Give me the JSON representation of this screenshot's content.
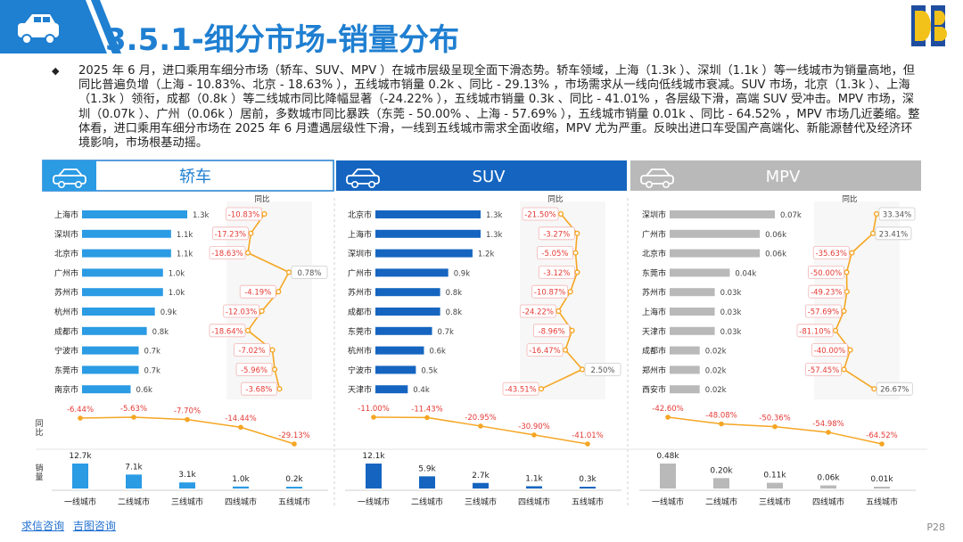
{
  "page": {
    "title": "3.5.1-细分市场-销量分布",
    "summary": "2025 年 6 月，进口乘用车细分市场（轿车、SUV、MPV ）在城市层级呈现全面下滑态势。轿车领域，上海（1.3k ）、深圳（1.1k ）等一线城市为销量高地，但同比普遍负增（上海 - 10.83%、北京 - 18.63% ），五线城市销量 0.2k 、同比 - 29.13% ，市场需求从一线向低线城市衰减。SUV 市场，北京（1.3k ）、上海（1.3k ）领衔，成都（0.8k ）等二线城市同比降幅显著（-24.22% ），五线城市销量 0.3k 、同比 - 41.01% ，各层级下滑，高端 SUV 受冲击。MPV 市场，深圳（0.07k ）、广州（0.06k ）居前，多数城市同比暴跌（东莞 - 50.00% 、上海 - 57.69% ），五线城市销量 0.01k 、同比 - 64.52% ，MPV 市场几近萎缩。整体看，进口乘用车细分市场在 2025 年 6 月遭遇层级性下滑，一线到五线城市需求全面收缩，MPV 尤为严重。反映出进口车受国产高端化、新能源替代及经济环境影响，市场根基动摇。",
    "bullet": "◆",
    "page_number": "P28",
    "footer_links": [
      "求信咨询",
      "吉图咨询"
    ],
    "tier_yoy_label": "同比",
    "tier_vol_label": "销量",
    "yoy_col_label": "同比"
  },
  "colors": {
    "title_blue": "#1f7fd1",
    "sedan_blue": "#2b9be4",
    "suv_blue": "#1565c0",
    "mpv_gray": "#b9b9b9",
    "yoy_orange": "#f5a623",
    "neg_red": "#e53935",
    "pos_gray": "#555555"
  },
  "chart_data": [
    {
      "type": "bar",
      "panel": "轿车",
      "title": "轿车",
      "categories": [
        "上海市",
        "深圳市",
        "北京市",
        "广州市",
        "苏州市",
        "杭州市",
        "成都市",
        "宁波市",
        "东莞市",
        "南京市"
      ],
      "values": [
        1.3,
        1.1,
        1.1,
        1.0,
        1.0,
        0.9,
        0.8,
        0.7,
        0.7,
        0.6
      ],
      "value_labels": [
        "1.3k",
        "1.1k",
        "1.1k",
        "1.0k",
        "1.0k",
        "0.9k",
        "0.8k",
        "0.7k",
        "0.7k",
        "0.6k"
      ],
      "yoy": [
        -10.83,
        -17.23,
        -18.63,
        0.78,
        -4.19,
        -12.03,
        -18.64,
        -7.02,
        -5.96,
        -3.68
      ],
      "yoy_labels": [
        "-10.83%",
        "-17.23%",
        "-18.63%",
        "0.78%",
        "-4.19%",
        "-12.03%",
        "-18.64%",
        "-7.02%",
        "-5.96%",
        "-3.68%"
      ],
      "tiers": {
        "categories": [
          "一线城市",
          "二线城市",
          "三线城市",
          "四线城市",
          "五线城市"
        ],
        "values": [
          12.7,
          7.1,
          3.1,
          1.0,
          0.2
        ],
        "value_labels": [
          "12.7k",
          "7.1k",
          "3.1k",
          "1.0k",
          "0.2k"
        ],
        "yoy": [
          -6.44,
          -5.63,
          -7.7,
          -14.44,
          -29.13
        ],
        "yoy_labels": [
          "-6.44%",
          "-5.63%",
          "-7.70%",
          "-14.44%",
          "-29.13%"
        ]
      }
    },
    {
      "type": "bar",
      "panel": "SUV",
      "title": "SUV",
      "categories": [
        "北京市",
        "上海市",
        "深圳市",
        "广州市",
        "苏州市",
        "成都市",
        "东莞市",
        "杭州市",
        "宁波市",
        "天津市"
      ],
      "values": [
        1.3,
        1.3,
        1.2,
        0.9,
        0.8,
        0.8,
        0.7,
        0.6,
        0.5,
        0.4
      ],
      "value_labels": [
        "1.3k",
        "1.3k",
        "1.2k",
        "0.9k",
        "0.8k",
        "0.8k",
        "0.7k",
        "0.6k",
        "0.5k",
        "0.4k"
      ],
      "yoy": [
        -21.5,
        -3.27,
        -5.05,
        -3.12,
        -10.87,
        -24.22,
        -8.96,
        -16.47,
        2.5,
        -43.51
      ],
      "yoy_labels": [
        "-21.50%",
        "-3.27%",
        "-5.05%",
        "-3.12%",
        "-10.87%",
        "-24.22%",
        "-8.96%",
        "-16.47%",
        "2.50%",
        "-43.51%"
      ],
      "tiers": {
        "categories": [
          "一线城市",
          "二线城市",
          "三线城市",
          "四线城市",
          "五线城市"
        ],
        "values": [
          12.1,
          5.9,
          2.7,
          1.1,
          0.3
        ],
        "value_labels": [
          "12.1k",
          "5.9k",
          "2.7k",
          "1.1k",
          "0.3k"
        ],
        "yoy": [
          -11.0,
          -11.43,
          -20.95,
          -30.9,
          -41.01
        ],
        "yoy_labels": [
          "-11.00%",
          "-11.43%",
          "-20.95%",
          "-30.90%",
          "-41.01%"
        ]
      }
    },
    {
      "type": "bar",
      "panel": "MPV",
      "title": "MPV",
      "categories": [
        "深圳市",
        "广州市",
        "北京市",
        "东莞市",
        "苏州市",
        "上海市",
        "天津市",
        "成都市",
        "郑州市",
        "西安市"
      ],
      "values": [
        0.07,
        0.06,
        0.06,
        0.04,
        0.03,
        0.03,
        0.03,
        0.02,
        0.02,
        0.02
      ],
      "value_labels": [
        "0.07k",
        "0.06k",
        "0.06k",
        "0.04k",
        "0.03k",
        "0.03k",
        "0.03k",
        "0.02k",
        "0.02k",
        "0.02k"
      ],
      "yoy": [
        33.34,
        23.41,
        -35.63,
        -50.0,
        -49.23,
        -57.69,
        -81.1,
        -40.0,
        -57.45,
        26.67
      ],
      "yoy_labels": [
        "33.34%",
        "23.41%",
        "-35.63%",
        "-50.00%",
        "-49.23%",
        "-57.69%",
        "-81.10%",
        "-40.00%",
        "-57.45%",
        "26.67%"
      ],
      "tiers": {
        "categories": [
          "一线城市",
          "二线城市",
          "三线城市",
          "四线城市",
          "五线城市"
        ],
        "values": [
          0.48,
          0.2,
          0.11,
          0.06,
          0.01
        ],
        "value_labels": [
          "0.48k",
          "0.20k",
          "0.11k",
          "0.06k",
          "0.01k"
        ],
        "yoy": [
          -42.6,
          -48.08,
          -50.36,
          -54.98,
          -64.52
        ],
        "yoy_labels": [
          "-42.60%",
          "-48.08%",
          "-50.36%",
          "-54.98%",
          "-64.52%"
        ]
      }
    }
  ]
}
